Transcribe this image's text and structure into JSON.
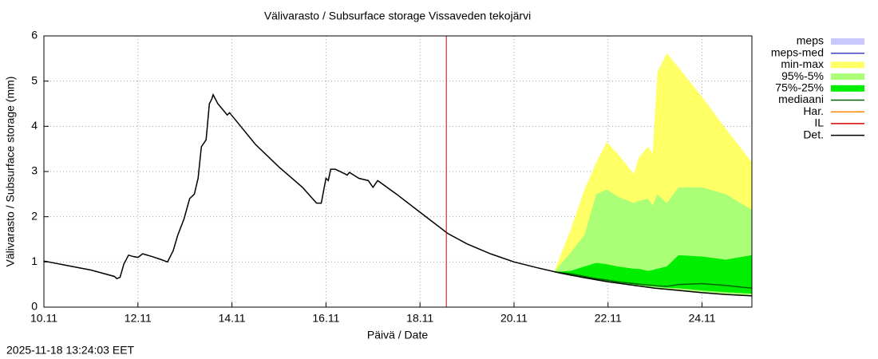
{
  "chart_data": {
    "type": "band-forecast",
    "title": "Välivarasto / Subsurface storage  Vissaveden tekojärvi",
    "x_label": "Päivä / Date",
    "y_label": "Välivarasto / Subsurface storage (mm)",
    "timestamp": "2025-11-18 13:24:03 EET",
    "xlim": [
      10,
      25.06
    ],
    "ylim": [
      0,
      6
    ],
    "xticks": [
      {
        "value": 10,
        "label": "10.11"
      },
      {
        "value": 12,
        "label": "12.11"
      },
      {
        "value": 14,
        "label": "14.11"
      },
      {
        "value": 16,
        "label": "16.11"
      },
      {
        "value": 18,
        "label": "18.11"
      },
      {
        "value": 20,
        "label": "20.11"
      },
      {
        "value": 22,
        "label": "22.11"
      },
      {
        "value": 24,
        "label": "24.11"
      }
    ],
    "yticks": [
      0,
      1,
      2,
      3,
      4,
      5,
      6
    ],
    "grid": true,
    "vline": {
      "x": 18.56,
      "color": "#c00020"
    },
    "series": [
      {
        "name": "meps",
        "kind": "band",
        "color": "#c8c8ff"
      },
      {
        "name": "meps-med",
        "kind": "line",
        "color": "#4040c0"
      },
      {
        "name": "min-max",
        "kind": "band",
        "color": "#ffff66",
        "x": [
          20.85,
          21.2,
          21.5,
          21.75,
          21.97,
          22.2,
          22.55,
          22.65,
          22.85,
          22.95,
          23.05,
          23.25,
          23.5,
          24.0,
          24.5,
          25.06
        ],
        "lower": [
          0.78,
          0.71,
          0.65,
          0.6,
          0.56,
          0.53,
          0.48,
          0.47,
          0.44,
          0.43,
          0.42,
          0.39,
          0.37,
          0.32,
          0.28,
          0.25
        ],
        "upper": [
          0.78,
          1.7,
          2.6,
          3.2,
          3.65,
          3.4,
          2.95,
          3.3,
          3.55,
          3.4,
          5.2,
          5.62,
          5.3,
          4.65,
          3.95,
          3.2
        ]
      },
      {
        "name": "95%-5%",
        "kind": "band",
        "color": "#aaff77",
        "x": [
          20.85,
          21.2,
          21.5,
          21.75,
          21.97,
          22.2,
          22.55,
          22.65,
          22.85,
          22.95,
          23.05,
          23.25,
          23.5,
          24.0,
          24.5,
          25.06
        ],
        "lower": [
          0.78,
          0.71,
          0.65,
          0.6,
          0.56,
          0.53,
          0.48,
          0.47,
          0.44,
          0.43,
          0.42,
          0.39,
          0.37,
          0.32,
          0.28,
          0.25
        ],
        "upper": [
          0.78,
          1.2,
          1.6,
          2.5,
          2.6,
          2.45,
          2.3,
          2.35,
          2.4,
          2.25,
          2.5,
          2.3,
          2.65,
          2.65,
          2.5,
          2.15
        ]
      },
      {
        "name": "75%-25%",
        "kind": "band",
        "color": "#00ee00",
        "x": [
          20.85,
          21.2,
          21.5,
          21.75,
          21.97,
          22.2,
          22.55,
          22.65,
          22.85,
          22.95,
          23.05,
          23.25,
          23.5,
          24.0,
          24.5,
          25.06
        ],
        "lower": [
          0.78,
          0.71,
          0.66,
          0.62,
          0.58,
          0.55,
          0.5,
          0.49,
          0.47,
          0.46,
          0.45,
          0.43,
          0.42,
          0.37,
          0.33,
          0.3
        ],
        "upper": [
          0.78,
          0.8,
          0.9,
          0.98,
          0.95,
          0.9,
          0.85,
          0.85,
          0.8,
          0.82,
          0.85,
          0.9,
          1.15,
          1.12,
          1.05,
          1.15
        ]
      },
      {
        "name": "mediaani",
        "kind": "line",
        "color": "#006400",
        "x": [
          20.85,
          21.2,
          21.5,
          21.75,
          21.97,
          22.2,
          22.55,
          22.65,
          22.85,
          22.95,
          23.05,
          23.25,
          23.5,
          24.0,
          24.5,
          25.06
        ],
        "values": [
          0.78,
          0.74,
          0.68,
          0.63,
          0.6,
          0.56,
          0.52,
          0.51,
          0.49,
          0.48,
          0.47,
          0.46,
          0.5,
          0.52,
          0.48,
          0.42
        ]
      },
      {
        "name": "Har.",
        "kind": "line",
        "color": "#ff8800"
      },
      {
        "name": "IL",
        "kind": "line",
        "color": "#dd0000"
      },
      {
        "name": "Det.",
        "kind": "line",
        "color": "#000000",
        "x": [
          10.0,
          10.5,
          11.0,
          11.5,
          11.55,
          11.62,
          11.7,
          11.8,
          11.9,
          12.0,
          12.1,
          12.3,
          12.5,
          12.63,
          12.75,
          12.85,
          12.98,
          13.1,
          13.2,
          13.28,
          13.35,
          13.45,
          13.52,
          13.57,
          13.6,
          13.7,
          13.9,
          13.95,
          14.5,
          15.0,
          15.5,
          15.8,
          15.9,
          16.0,
          16.05,
          16.1,
          16.2,
          16.4,
          16.45,
          16.5,
          16.7,
          16.9,
          17.0,
          17.1,
          17.5,
          18.0,
          18.59,
          19.0,
          19.5,
          20.0,
          20.5,
          21.0,
          21.5,
          22.0,
          22.5,
          23.0,
          23.5,
          24.0,
          24.5,
          25.06
        ],
        "values": [
          1.02,
          0.92,
          0.82,
          0.68,
          0.63,
          0.66,
          0.95,
          1.15,
          1.12,
          1.1,
          1.18,
          1.12,
          1.05,
          1.0,
          1.25,
          1.6,
          1.95,
          2.4,
          2.5,
          2.85,
          3.55,
          3.7,
          4.5,
          4.6,
          4.7,
          4.5,
          4.25,
          4.3,
          3.6,
          3.1,
          2.65,
          2.3,
          2.3,
          2.85,
          2.8,
          3.05,
          3.05,
          2.95,
          2.92,
          2.98,
          2.85,
          2.8,
          2.65,
          2.8,
          2.5,
          2.1,
          1.63,
          1.4,
          1.18,
          1.0,
          0.87,
          0.75,
          0.65,
          0.56,
          0.49,
          0.42,
          0.37,
          0.32,
          0.28,
          0.25
        ]
      }
    ]
  }
}
